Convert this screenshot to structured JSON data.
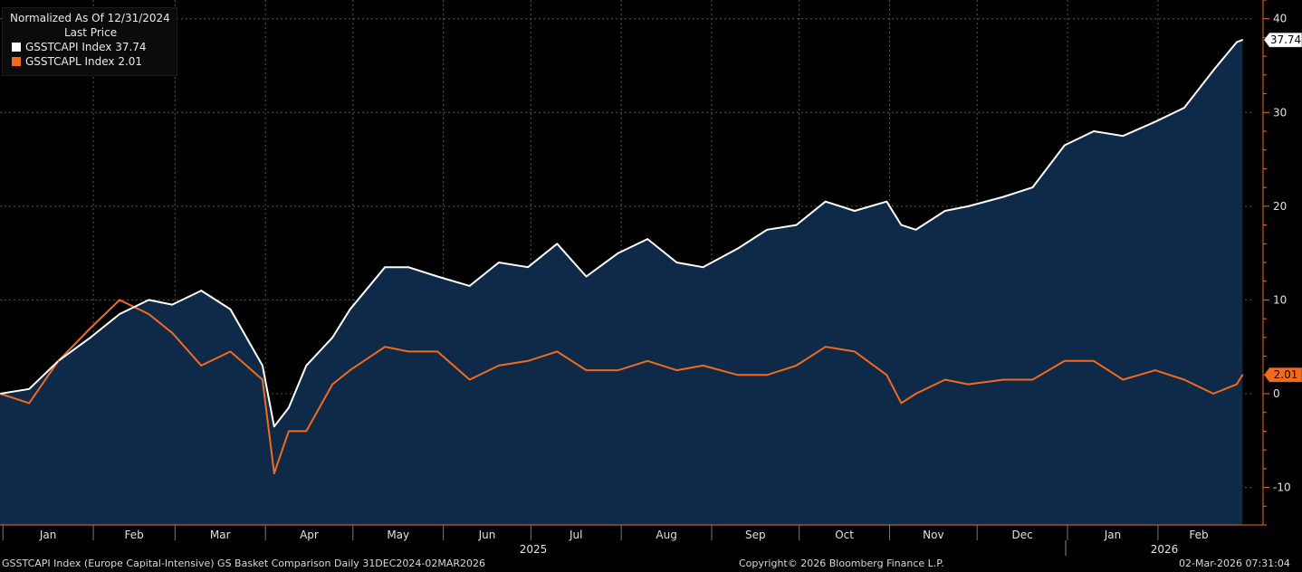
{
  "legend": {
    "normalized_label": "Normalized As Of 12/31/2024",
    "price_label": "Last Price",
    "items": [
      {
        "label": "GSSTCAPI Index  37.74",
        "color": "#ffffff"
      },
      {
        "label": "GSSTCAPL Index  2.01",
        "color": "#f26b1d"
      }
    ]
  },
  "footer": {
    "left": "GSSTCAPI Index (Europe Capital-Intensive) GS Basket Comparison Daily 31DEC2024-02MAR2026",
    "center": "Copyright© 2026 Bloomberg Finance L.P.",
    "right": "02-Mar-2026 07:31:04"
  },
  "chart_data": {
    "type": "line",
    "xlabel": "",
    "ylabel": "",
    "ylim": [
      -14,
      42
    ],
    "y_ticks": [
      -10,
      0,
      10,
      20,
      30,
      40
    ],
    "grid": true,
    "legend_position": "top-left",
    "month_labels": [
      "Jan",
      "Feb",
      "Mar",
      "Apr",
      "May",
      "Jun",
      "Jul",
      "Aug",
      "Sep",
      "Oct",
      "Nov",
      "Dec",
      "Jan",
      "Feb"
    ],
    "year_labels": [
      "2025",
      "2026"
    ],
    "x": [
      "2024-12-31",
      "2025-01-10",
      "2025-01-20",
      "2025-01-31",
      "2025-02-10",
      "2025-02-20",
      "2025-02-28",
      "2025-03-10",
      "2025-03-20",
      "2025-03-31",
      "2025-04-04",
      "2025-04-09",
      "2025-04-15",
      "2025-04-24",
      "2025-04-30",
      "2025-05-12",
      "2025-05-20",
      "2025-05-30",
      "2025-06-10",
      "2025-06-20",
      "2025-06-30",
      "2025-07-10",
      "2025-07-20",
      "2025-07-31",
      "2025-08-10",
      "2025-08-20",
      "2025-08-29",
      "2025-09-10",
      "2025-09-20",
      "2025-09-30",
      "2025-10-10",
      "2025-10-20",
      "2025-10-31",
      "2025-11-05",
      "2025-11-10",
      "2025-11-20",
      "2025-11-28",
      "2025-12-10",
      "2025-12-20",
      "2025-12-31",
      "2026-01-10",
      "2026-01-20",
      "2026-01-31",
      "2026-02-10",
      "2026-02-20",
      "2026-02-28",
      "2026-03-02"
    ],
    "series": [
      {
        "name": "GSSTCAPI Index",
        "color": "#ffffff",
        "fill": "#0f2a48",
        "last_value": 37.74,
        "values": [
          0,
          0.5,
          3.5,
          6,
          8.5,
          10,
          9.5,
          11,
          9,
          3,
          -3.5,
          -1.5,
          3,
          6,
          9,
          13.5,
          13.5,
          12.5,
          11.5,
          14,
          13.5,
          16,
          12.5,
          15,
          16.5,
          14,
          13.5,
          15.5,
          17.5,
          18,
          20.5,
          19.5,
          20.5,
          18,
          17.5,
          19.5,
          20,
          21,
          22,
          26.5,
          28,
          27.5,
          29,
          30.5,
          34.5,
          37.5,
          37.74
        ]
      },
      {
        "name": "GSSTCAPL Index",
        "color": "#f26b1d",
        "last_value": 2.01,
        "values": [
          0,
          -1,
          3.5,
          7,
          10,
          8.5,
          6.5,
          3,
          4.5,
          1.5,
          -8.5,
          -4,
          -4,
          1,
          2.5,
          5,
          4.5,
          4.5,
          1.5,
          3,
          3.5,
          4.5,
          2.5,
          2.5,
          3.5,
          2.5,
          3,
          2,
          2,
          3,
          5,
          4.5,
          2,
          -1,
          0,
          1.5,
          1,
          1.5,
          1.5,
          3.5,
          3.5,
          1.5,
          2.5,
          1.5,
          0,
          1,
          2.01
        ]
      }
    ]
  }
}
